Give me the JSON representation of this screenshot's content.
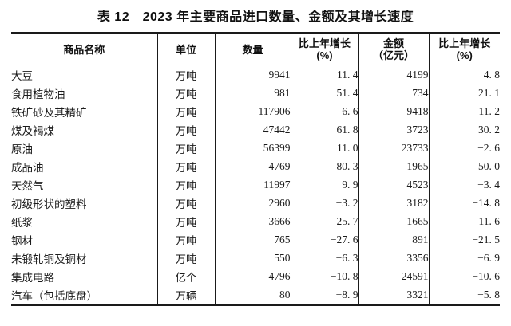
{
  "colors": {
    "text": "#1c1c1c",
    "line": "#1a1a1a",
    "bg": "#ffffff"
  },
  "table": {
    "title": "表 12　2023 年主要商品进口数量、金额及其增长速度",
    "columns": [
      {
        "label": "商品名称"
      },
      {
        "label": "单位"
      },
      {
        "label": "数量"
      },
      {
        "label": "比上年增长",
        "sub": "(%)"
      },
      {
        "label": "金额",
        "sub": "（亿元）"
      },
      {
        "label": "比上年增长",
        "sub": "(%)"
      }
    ],
    "rows": [
      [
        "大豆",
        "万吨",
        "9941",
        "11.4",
        "4199",
        "4.8"
      ],
      [
        "食用植物油",
        "万吨",
        "981",
        "51.4",
        "734",
        "21.1"
      ],
      [
        "铁矿砂及其精矿",
        "万吨",
        "117906",
        "6.6",
        "9418",
        "11.2"
      ],
      [
        "煤及褐煤",
        "万吨",
        "47442",
        "61.8",
        "3723",
        "30.2"
      ],
      [
        "原油",
        "万吨",
        "56399",
        "11.0",
        "23733",
        "-2.6"
      ],
      [
        "成品油",
        "万吨",
        "4769",
        "80.3",
        "1965",
        "50.0"
      ],
      [
        "天然气",
        "万吨",
        "11997",
        "9.9",
        "4523",
        "-3.4"
      ],
      [
        "初级形状的塑料",
        "万吨",
        "2960",
        "-3.2",
        "3182",
        "-14.8"
      ],
      [
        "纸浆",
        "万吨",
        "3666",
        "25.7",
        "1665",
        "11.6"
      ],
      [
        "钢材",
        "万吨",
        "765",
        "-27.6",
        "891",
        "-21.5"
      ],
      [
        "未锻轧铜及铜材",
        "万吨",
        "550",
        "-6.3",
        "3356",
        "-6.9"
      ],
      [
        "集成电路",
        "亿个",
        "4796",
        "-10.8",
        "24591",
        "-10.6"
      ],
      [
        "汽车（包括底盘）",
        "万辆",
        "80",
        "-8.9",
        "3321",
        "-5.8"
      ]
    ]
  }
}
